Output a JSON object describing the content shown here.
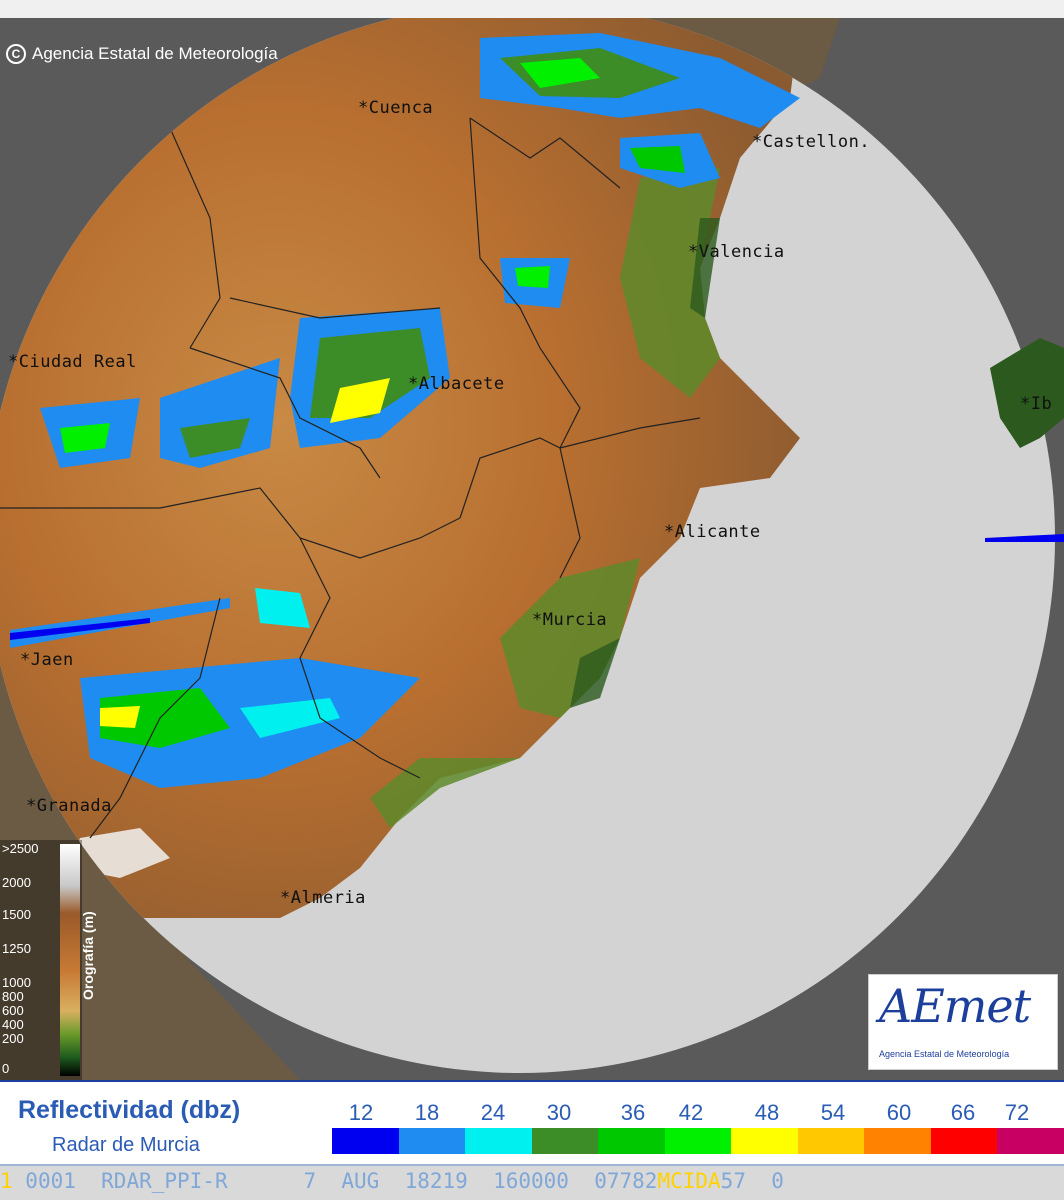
{
  "copyright": "Agencia Estatal de Meteorología",
  "cities": [
    {
      "name": "Cuenca"
    },
    {
      "name": "Castellon."
    },
    {
      "name": "Valencia"
    },
    {
      "name": "Ciudad Real"
    },
    {
      "name": "Albacete"
    },
    {
      "name": "Ib"
    },
    {
      "name": "Alicante"
    },
    {
      "name": "Murcia"
    },
    {
      "name": "Jaen"
    },
    {
      "name": "Granada"
    },
    {
      "name": "Almeria"
    }
  ],
  "orography_legend": {
    "title": "Orografía (m)",
    "ticks": [
      ">2500",
      "2000",
      "1500",
      "1250",
      "1000",
      "800",
      "600",
      "400",
      "200",
      "0"
    ]
  },
  "logo": {
    "text": "AEmet",
    "subtitle": "Agencia Estatal de Meteorología"
  },
  "reflectivity_legend": {
    "title": "Reflectividad (dbz)",
    "subtitle": "Radar de Murcia",
    "labels": [
      "12",
      "18",
      "24",
      "30",
      "36",
      "42",
      "48",
      "54",
      "60",
      "66",
      "72"
    ],
    "colors": [
      "#0000f0",
      "#1e8cf0",
      "#00f0f0",
      "#3c8c28",
      "#00c800",
      "#00f000",
      "#ffff00",
      "#ffc800",
      "#ff8200",
      "#ff0000",
      "#c80064"
    ]
  },
  "status_bar": {
    "prefix": "1",
    "text": " 0001  RDAR_PPI-R      7  AUG  18219  160000  07782",
    "overlay": "MCIDA",
    "tail": "57  0"
  }
}
